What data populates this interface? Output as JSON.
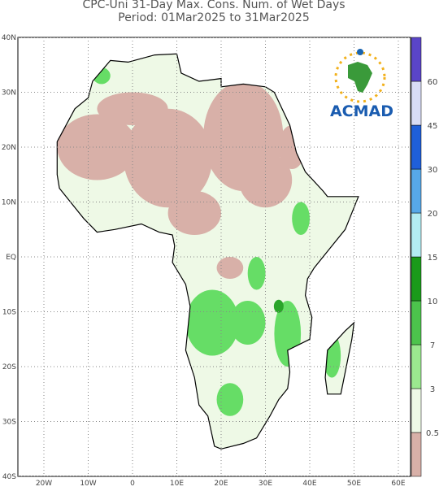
{
  "header": {
    "title": "CPC-Uni 31-Day Max. Cons. Num. of Wet Days",
    "period": "Period: 01Mar2025 to 31Mar2025"
  },
  "map": {
    "lat_labels": [
      "40N",
      "30N",
      "20N",
      "10N",
      "EQ",
      "10S",
      "20S",
      "30S",
      "40S"
    ],
    "lon_labels": [
      "20W",
      "10W",
      "0",
      "10E",
      "20E",
      "30E",
      "40E",
      "50E",
      "60E"
    ]
  },
  "colorbar": {
    "labels": [
      "0.5",
      "3",
      "7",
      "10",
      "15",
      "20",
      "30",
      "45",
      "60"
    ]
  },
  "logo": {
    "text": "ACMAD"
  }
}
